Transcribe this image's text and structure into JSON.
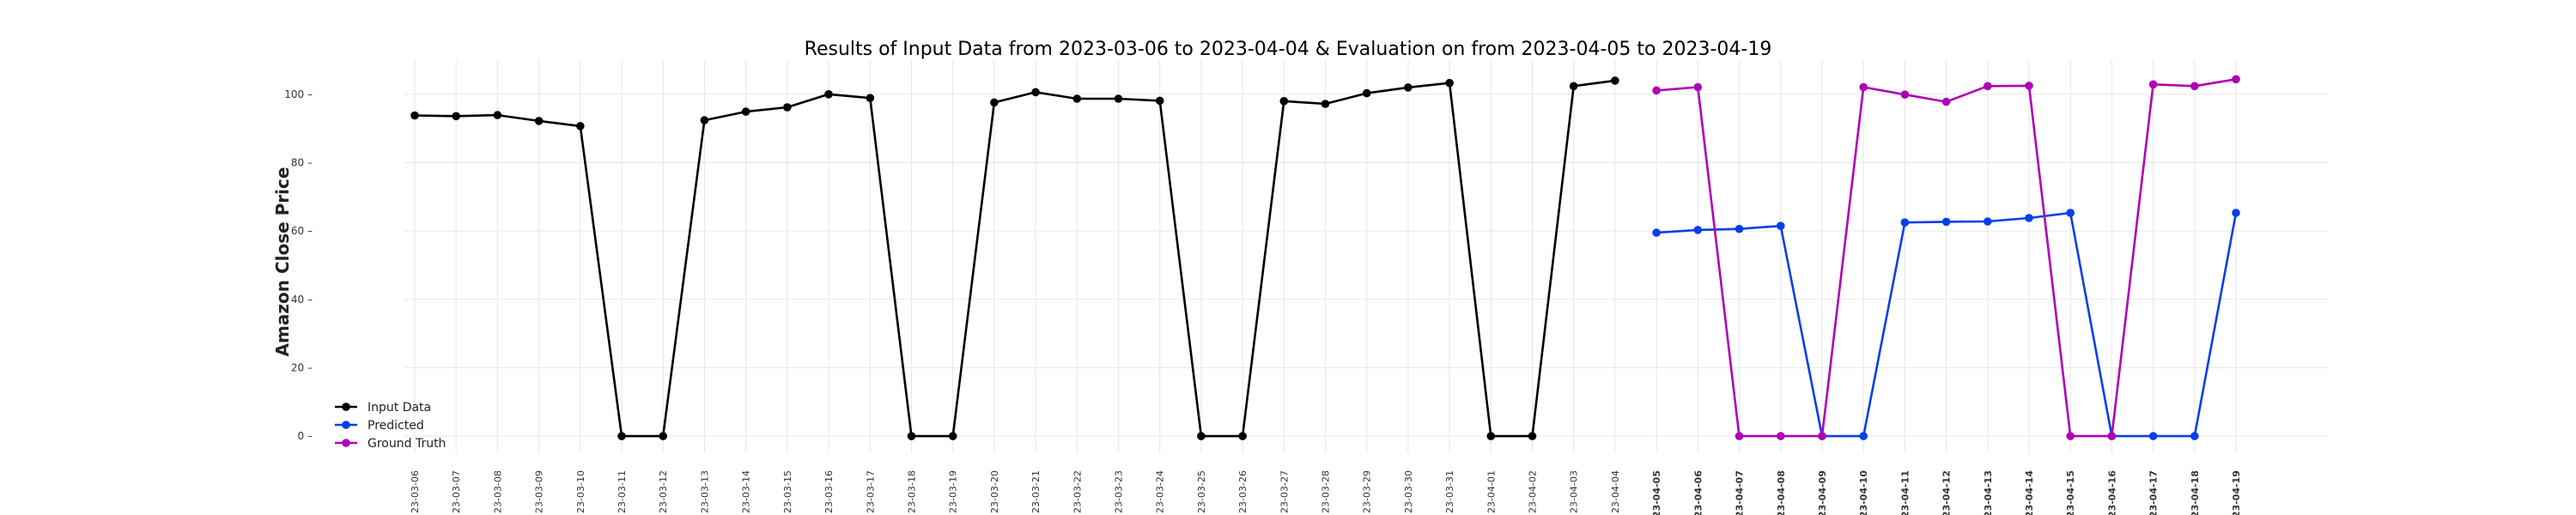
{
  "chart_data": {
    "type": "line",
    "title": "Results of Input Data from 2023-03-06 to 2023-04-04 & Evaluation on from 2023-04-05 to 2023-04-19",
    "xlabel": "",
    "ylabel": "Amazon Close Price",
    "ylim": [
      -5,
      110
    ],
    "yticks": [
      0,
      20,
      40,
      60,
      80,
      100
    ],
    "grid": true,
    "legend_position": "lower-left",
    "x": [
      "23-03-06",
      "23-03-07",
      "23-03-08",
      "23-03-09",
      "23-03-10",
      "23-03-11",
      "23-03-12",
      "23-03-13",
      "23-03-14",
      "23-03-15",
      "23-03-16",
      "23-03-17",
      "23-03-18",
      "23-03-19",
      "23-03-20",
      "23-03-21",
      "23-03-22",
      "23-03-23",
      "23-03-24",
      "23-03-25",
      "23-03-26",
      "23-03-27",
      "23-03-28",
      "23-03-29",
      "23-03-30",
      "23-03-31",
      "23-04-01",
      "23-04-02",
      "23-04-03",
      "23-04-04",
      "23-04-05",
      "23-04-06",
      "23-04-07",
      "23-04-08",
      "23-04-09",
      "23-04-10",
      "23-04-11",
      "23-04-12",
      "23-04-13",
      "23-04-14",
      "23-04-15",
      "23-04-16",
      "23-04-17",
      "23-04-18",
      "23-04-19"
    ],
    "bold_from_index": 30,
    "series": [
      {
        "name": "Input Data",
        "color": "#000000",
        "x": [
          "23-03-06",
          "23-03-07",
          "23-03-08",
          "23-03-09",
          "23-03-10",
          "23-03-11",
          "23-03-12",
          "23-03-13",
          "23-03-14",
          "23-03-15",
          "23-03-16",
          "23-03-17",
          "23-03-18",
          "23-03-19",
          "23-03-20",
          "23-03-21",
          "23-03-22",
          "23-03-23",
          "23-03-24",
          "23-03-25",
          "23-03-26",
          "23-03-27",
          "23-03-28",
          "23-03-29",
          "23-03-30",
          "23-03-31",
          "23-04-01",
          "23-04-02",
          "23-04-03",
          "23-04-04"
        ],
        "values": [
          93.8,
          93.6,
          93.9,
          92.2,
          90.7,
          0,
          0,
          92.4,
          94.9,
          96.2,
          100.0,
          98.9,
          0,
          0,
          97.6,
          100.6,
          98.7,
          98.7,
          98.1,
          0,
          0,
          98.0,
          97.2,
          100.3,
          102.0,
          103.3,
          0,
          0,
          102.4,
          104.0
        ]
      },
      {
        "name": "Predicted",
        "color": "#0a3ee8",
        "x": [
          "23-04-05",
          "23-04-06",
          "23-04-07",
          "23-04-08",
          "23-04-09",
          "23-04-10",
          "23-04-11",
          "23-04-12",
          "23-04-13",
          "23-04-14",
          "23-04-15",
          "23-04-16",
          "23-04-17",
          "23-04-18",
          "23-04-19"
        ],
        "values": [
          59.5,
          60.3,
          60.6,
          61.5,
          0,
          0,
          62.5,
          62.7,
          62.8,
          63.8,
          65.3,
          0,
          0,
          0,
          65.3
        ]
      },
      {
        "name": "Ground Truth",
        "color": "#b000b5",
        "x": [
          "23-04-05",
          "23-04-06",
          "23-04-07",
          "23-04-08",
          "23-04-09",
          "23-04-10",
          "23-04-11",
          "23-04-12",
          "23-04-13",
          "23-04-14",
          "23-04-15",
          "23-04-16",
          "23-04-17",
          "23-04-18",
          "23-04-19"
        ],
        "values": [
          101.1,
          102.1,
          0,
          0,
          0,
          102.1,
          99.9,
          97.8,
          102.4,
          102.5,
          0,
          0,
          102.9,
          102.4,
          104.4
        ]
      }
    ]
  }
}
